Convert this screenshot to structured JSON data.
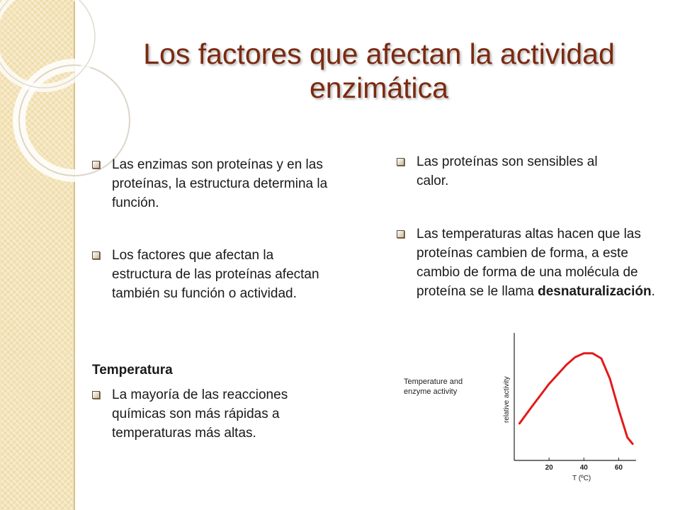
{
  "title": "Los factores que afectan la actividad enzimática",
  "left_column": {
    "bullet_1": "Las enzimas son proteínas y en las proteínas, la estructura determina la función.",
    "bullet_2": "Los factores que afectan la estructura de las proteínas afectan también su función o actividad.",
    "section_label": "Temperatura",
    "bullet_3": "La mayoría de las reacciones químicas son más rápidas a temperaturas más altas."
  },
  "right_column": {
    "bullet_1": "Las proteínas son sensibles al calor.",
    "bullet_2_pre": "Las temperaturas altas hacen que las proteínas cambien de forma, a este cambio de forma de una molécula de proteína se le llama ",
    "bullet_2_bold": "desnaturalización",
    "bullet_2_post": "."
  },
  "chart_data": {
    "type": "line",
    "title_line_1": "Temperature and",
    "title_line_2": "enzyme activity",
    "xlabel": "T (ºC)",
    "ylabel": "relative activity",
    "xlim": [
      0,
      70
    ],
    "ylim": [
      0,
      100
    ],
    "xticks": [
      20,
      40,
      60
    ],
    "series": [
      {
        "color": "#e31a1a",
        "x": [
          3,
          10,
          20,
          30,
          35,
          40,
          45,
          50,
          55,
          60,
          65,
          68
        ],
        "y": [
          29,
          42,
          60,
          75,
          81,
          84,
          84,
          80,
          64,
          40,
          18,
          13
        ]
      }
    ]
  },
  "colors": {
    "title": "#7b2a11",
    "curve": "#e31a1a",
    "panel": "#f4e4b8"
  }
}
